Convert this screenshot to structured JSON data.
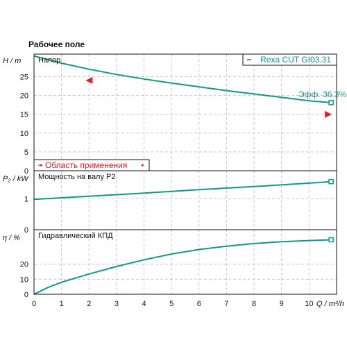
{
  "chart_data": {
    "type": "line",
    "title": "Рабочее поле",
    "color": "#0e9a84",
    "operating_color": "#e0202a",
    "x": {
      "label": "Q / m³/h",
      "ticks": [
        "0",
        "1",
        "2",
        "3",
        "4",
        "5",
        "6",
        "7",
        "8",
        "9",
        "10"
      ],
      "range": [
        0,
        11
      ]
    },
    "legend": "Rexa CUT GI03.31",
    "efficiency_label": "Эфф. 36.3%",
    "operating_range_label": "Область применения",
    "panels": [
      {
        "name": "Напор",
        "ylabel": "H / m",
        "yticks": [
          "0",
          "5",
          "10",
          "15",
          "20",
          "25"
        ],
        "ylim": [
          0,
          31
        ],
        "series": {
          "x": [
            0,
            1,
            2,
            3,
            4,
            5,
            6,
            7,
            8,
            9,
            10,
            10.8
          ],
          "y": [
            30.5,
            28.6,
            27.0,
            25.6,
            24.4,
            23.3,
            22.3,
            21.3,
            20.4,
            19.5,
            18.6,
            18.1
          ]
        },
        "endpoint_value": 18.1,
        "operating_markers": [
          {
            "x": 2.0,
            "y": 24.0,
            "direction": "left"
          },
          {
            "x": 10.7,
            "y": 15.0,
            "direction": "right"
          }
        ]
      },
      {
        "name": "Мощность на валу P2",
        "ylabel": "P₂ / kW",
        "yticks": [
          "0",
          "1"
        ],
        "ylim": [
          0,
          1.9
        ],
        "series": {
          "x": [
            0,
            2,
            4,
            6,
            8,
            10,
            10.8
          ],
          "y": [
            0.98,
            1.08,
            1.18,
            1.29,
            1.39,
            1.5,
            1.55
          ]
        },
        "endpoint_value": 1.55
      },
      {
        "name": "Гидравлический КПД",
        "ylabel": "η / %",
        "yticks": [
          "0",
          "10",
          "20"
        ],
        "ylim": [
          0,
          43
        ],
        "series": {
          "x": [
            0,
            0.5,
            1,
            2,
            3,
            4,
            5,
            6,
            7,
            8,
            9,
            10,
            10.8
          ],
          "y": [
            0,
            4.5,
            8.0,
            13.5,
            18.5,
            23.0,
            26.8,
            29.8,
            32.0,
            33.8,
            35.0,
            35.8,
            36.3
          ]
        },
        "endpoint_value": 36.3
      }
    ]
  }
}
